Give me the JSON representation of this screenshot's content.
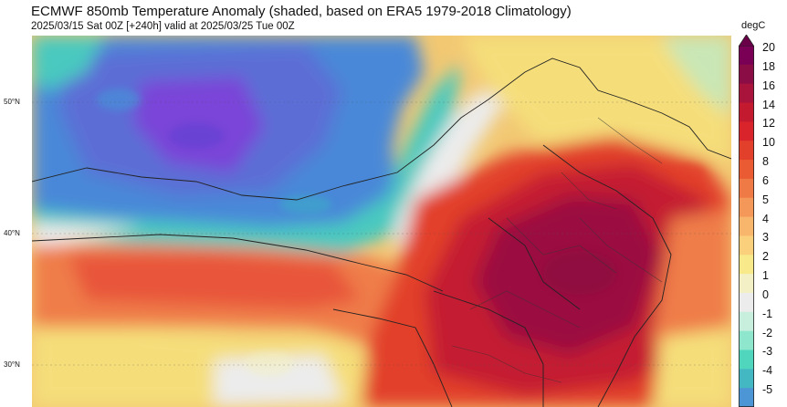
{
  "header": {
    "title": "ECMWF 850mb Temperature Anomaly (shaded, based on ERA5 1979-2018 Climatology)",
    "subtitle": "2025/03/15 Sat 00Z [+240h] valid at 2025/03/25 Tue 00Z"
  },
  "lat_labels": [
    "50°N",
    "40°N",
    "30°N"
  ],
  "colorbar": {
    "unit": "degC",
    "ticks": [
      "20",
      "18",
      "16",
      "14",
      "12",
      "10",
      "8",
      "6",
      "5",
      "4",
      "3",
      "2",
      "1",
      "0",
      "-1",
      "-2",
      "-3",
      "-4",
      "-5"
    ],
    "colors": [
      "#7a0055",
      "#8b0d45",
      "#a8143b",
      "#c41a30",
      "#d8242a",
      "#e2402b",
      "#ea5a33",
      "#ef7a45",
      "#f4985a",
      "#f8b56c",
      "#fad07c",
      "#f8e98b",
      "#f2f0c4",
      "#ececec",
      "#c8eedd",
      "#8ee6cc",
      "#4fd6bd",
      "#44b8c2",
      "#4c96d6"
    ],
    "arrow_color": "#6a0048"
  },
  "map": {
    "palette": {
      "deep_warm": "#9b0f3f",
      "warm": "#d9262c",
      "orange": "#ef7d49",
      "yellow": "#f5de7a",
      "neutral": "#ececec",
      "cold_teal": "#49c9bf",
      "cold_blue": "#4a88d8",
      "cold_purple": "#7a45d8"
    }
  }
}
